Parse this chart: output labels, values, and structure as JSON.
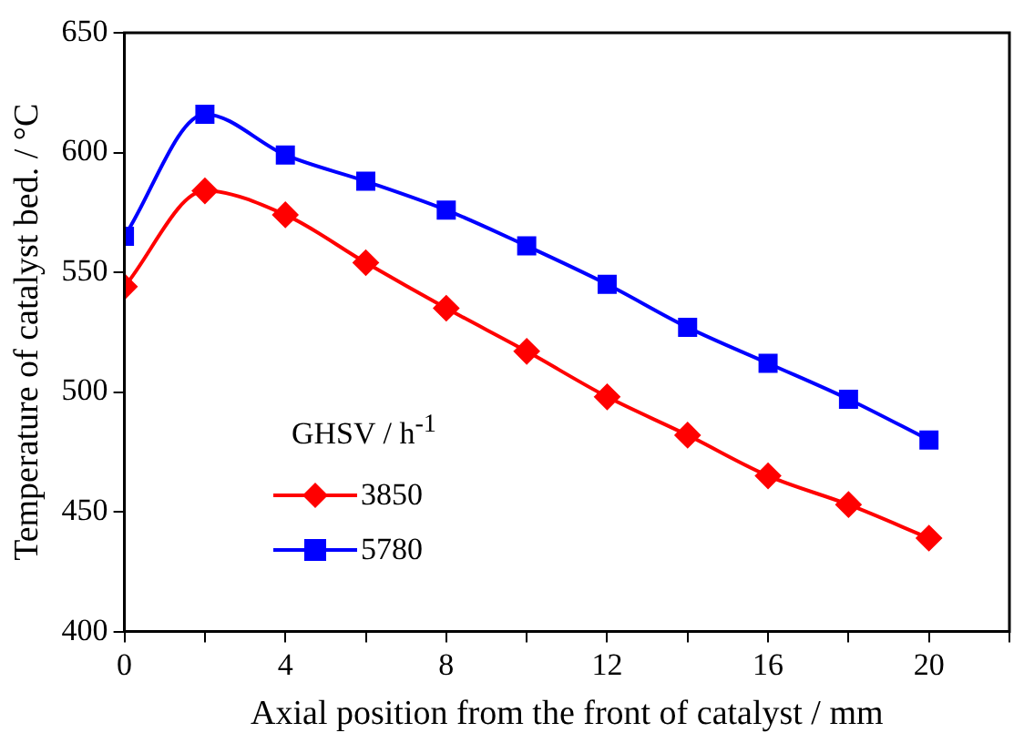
{
  "chart_data": {
    "type": "line",
    "xlabel": "Axial position from the front of catalyst / mm",
    "ylabel": "Temperature of catalyst bed. / °C",
    "legend_title": "GHSV / h$^{-1}$",
    "x": [
      0,
      2,
      4,
      6,
      8,
      10,
      12,
      14,
      16,
      18,
      20
    ],
    "series": [
      {
        "name": "3850",
        "color": "#ff0000",
        "marker": "diamond",
        "values": [
          544,
          584,
          574,
          554,
          535,
          517,
          498,
          482,
          465,
          453,
          439
        ]
      },
      {
        "name": "5780",
        "color": "#0000ff",
        "marker": "square",
        "values": [
          565,
          616,
          599,
          588,
          576,
          561,
          545,
          527,
          512,
          497,
          480
        ]
      }
    ],
    "xlim": [
      0,
      22
    ],
    "xticks": [
      0,
      {
        "value": 2,
        "label": null
      },
      4,
      {
        "value": 6,
        "label": null
      },
      8,
      {
        "value": 10,
        "label": null
      },
      12,
      {
        "value": 14,
        "label": null
      },
      16,
      {
        "value": 18,
        "label": null
      },
      20,
      {
        "value": 22,
        "label": null
      }
    ],
    "ylim": [
      400,
      650
    ],
    "yticks": [
      400,
      450,
      500,
      550,
      600,
      650
    ],
    "grid": false,
    "legend": "left",
    "line_style": "solid"
  }
}
